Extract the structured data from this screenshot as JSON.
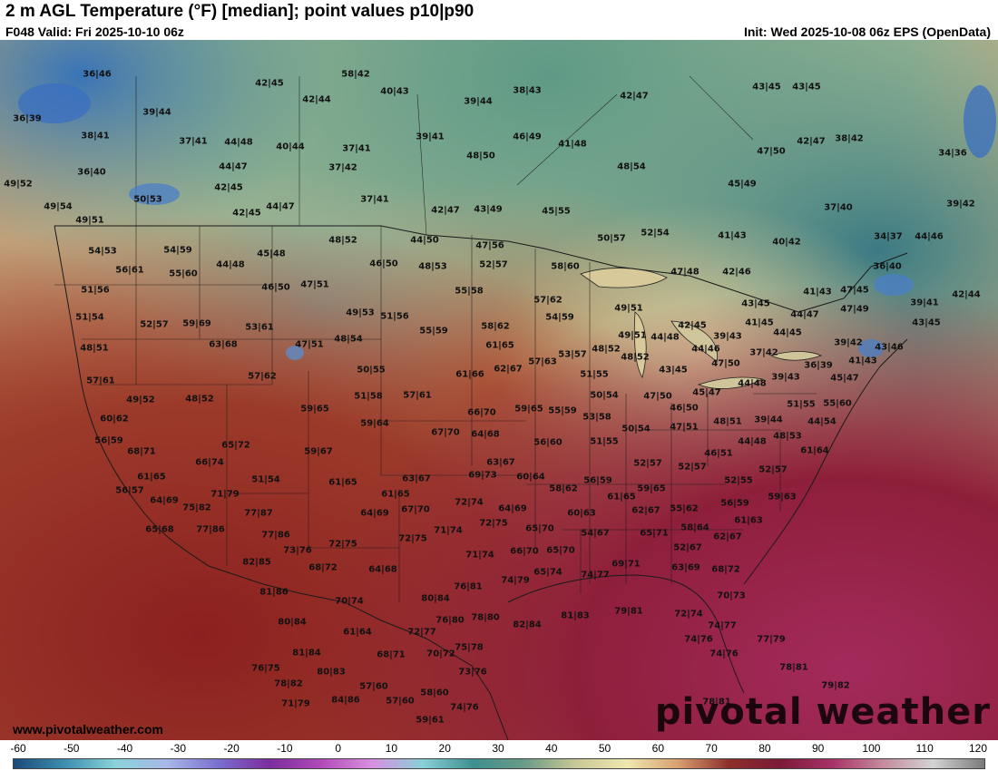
{
  "header": {
    "title": "2 m AGL Temperature (°F) [median]; point values p10|p90",
    "valid": "F048 Valid: Fri 2025-10-10 06z",
    "init": "Init: Wed 2025-10-08 06z EPS (OpenData)"
  },
  "footer": {
    "site": "www.pivotalweather.com",
    "logo": "pivotal weather"
  },
  "colorbar": {
    "labels": [
      "-60",
      "-50",
      "-40",
      "-30",
      "-20",
      "-10",
      "0",
      "10",
      "20",
      "30",
      "40",
      "50",
      "60",
      "70",
      "80",
      "90",
      "100",
      "110",
      "120"
    ],
    "stops": [
      "#1a4a7a",
      "#3d8fb0",
      "#8ad3d9",
      "#a9b7e8",
      "#7a6fcf",
      "#7b2d9e",
      "#b04ab8",
      "#d98ee0",
      "#8ad0d8",
      "#3d8f8f",
      "#6a9b87",
      "#c9c896",
      "#efe7b0",
      "#d9a070",
      "#8c2f2a",
      "#7a1a38",
      "#a73067",
      "#c58a9c",
      "#d4d4d4",
      "#7a7a7a"
    ]
  },
  "points": [
    [
      "36|46",
      107,
      82
    ],
    [
      "58|42",
      392,
      82
    ],
    [
      "42|45",
      297,
      92
    ],
    [
      "40|43",
      435,
      101
    ],
    [
      "42|44",
      349,
      110
    ],
    [
      "39|44",
      527,
      112
    ],
    [
      "38|43",
      581,
      100
    ],
    [
      "42|47",
      699,
      106
    ],
    [
      "43|45",
      845,
      96
    ],
    [
      "43|45",
      889,
      96
    ],
    [
      "36|39",
      30,
      131
    ],
    [
      "39|44",
      173,
      124
    ],
    [
      "38|41",
      105,
      150
    ],
    [
      "37|41",
      213,
      156
    ],
    [
      "44|48",
      263,
      157
    ],
    [
      "40|44",
      320,
      162
    ],
    [
      "37|41",
      393,
      164
    ],
    [
      "39|41",
      474,
      151
    ],
    [
      "46|49",
      581,
      151
    ],
    [
      "41|48",
      631,
      159
    ],
    [
      "47|50",
      850,
      167
    ],
    [
      "42|47",
      894,
      156
    ],
    [
      "38|42",
      936,
      153
    ],
    [
      "34|36",
      1050,
      169
    ],
    [
      "48|50",
      530,
      172
    ],
    [
      "44|47",
      257,
      184
    ],
    [
      "37|42",
      378,
      185
    ],
    [
      "48|54",
      696,
      184
    ],
    [
      "36|40",
      101,
      190
    ],
    [
      "49|52",
      20,
      203
    ],
    [
      "42|45",
      252,
      207
    ],
    [
      "45|49",
      818,
      203
    ],
    [
      "50|53",
      163,
      220
    ],
    [
      "37|41",
      413,
      220
    ],
    [
      "49|54",
      64,
      228
    ],
    [
      "44|47",
      309,
      228
    ],
    [
      "42|45",
      272,
      235
    ],
    [
      "42|47",
      491,
      232
    ],
    [
      "43|49",
      538,
      231
    ],
    [
      "45|55",
      613,
      233
    ],
    [
      "37|40",
      924,
      229
    ],
    [
      "39|42",
      1059,
      225
    ],
    [
      "49|51",
      99,
      243
    ],
    [
      "50|57",
      674,
      263
    ],
    [
      "52|54",
      722,
      257
    ],
    [
      "41|43",
      807,
      260
    ],
    [
      "40|42",
      867,
      267
    ],
    [
      "34|37",
      979,
      261
    ],
    [
      "44|46",
      1024,
      261
    ],
    [
      "48|52",
      378,
      265
    ],
    [
      "44|50",
      468,
      265
    ],
    [
      "47|56",
      540,
      271
    ],
    [
      "54|53",
      113,
      277
    ],
    [
      "54|59",
      196,
      276
    ],
    [
      "45|48",
      299,
      280
    ],
    [
      "46|50",
      423,
      291
    ],
    [
      "48|53",
      477,
      294
    ],
    [
      "52|57",
      544,
      292
    ],
    [
      "58|60",
      623,
      294
    ],
    [
      "36|40",
      978,
      294
    ],
    [
      "44|48",
      254,
      292
    ],
    [
      "56|61",
      143,
      298
    ],
    [
      "55|60",
      202,
      302
    ],
    [
      "47|48",
      755,
      300
    ],
    [
      "42|46",
      812,
      300
    ],
    [
      "46|50",
      304,
      317
    ],
    [
      "47|51",
      347,
      314
    ],
    [
      "55|58",
      517,
      321
    ],
    [
      "41|43",
      901,
      322
    ],
    [
      "47|45",
      942,
      320
    ],
    [
      "42|44",
      1065,
      325
    ],
    [
      "51|56",
      105,
      320
    ],
    [
      "57|62",
      604,
      331
    ],
    [
      "49|51",
      693,
      340
    ],
    [
      "43|45",
      833,
      335
    ],
    [
      "47|49",
      942,
      341
    ],
    [
      "39|41",
      1019,
      334
    ],
    [
      "51|54",
      99,
      350
    ],
    [
      "52|57",
      170,
      358
    ],
    [
      "59|69",
      217,
      357
    ],
    [
      "53|61",
      286,
      361
    ],
    [
      "49|53",
      397,
      345
    ],
    [
      "51|56",
      435,
      349
    ],
    [
      "54|59",
      617,
      350
    ],
    [
      "58|62",
      546,
      360
    ],
    [
      "42|45",
      763,
      359
    ],
    [
      "41|45",
      837,
      356
    ],
    [
      "44|47",
      887,
      347
    ],
    [
      "43|45",
      1021,
      356
    ],
    [
      "55|59",
      478,
      365
    ],
    [
      "49|51",
      697,
      370
    ],
    [
      "44|48",
      733,
      372
    ],
    [
      "39|43",
      802,
      371
    ],
    [
      "44|45",
      868,
      367
    ],
    [
      "39|42",
      935,
      378
    ],
    [
      "43|46",
      980,
      383
    ],
    [
      "48|51",
      104,
      384
    ],
    [
      "63|68",
      246,
      380
    ],
    [
      "47|51",
      341,
      380
    ],
    [
      "48|54",
      384,
      374
    ],
    [
      "61|65",
      551,
      381
    ],
    [
      "53|57",
      631,
      391
    ],
    [
      "48|52",
      668,
      385
    ],
    [
      "44|46",
      778,
      385
    ],
    [
      "37|42",
      842,
      389
    ],
    [
      "57|63",
      598,
      399
    ],
    [
      "48|52",
      700,
      394
    ],
    [
      "47|50",
      800,
      401
    ],
    [
      "36|39",
      902,
      403
    ],
    [
      "41|43",
      951,
      398
    ],
    [
      "57|62",
      289,
      415
    ],
    [
      "50|55",
      409,
      408
    ],
    [
      "61|66",
      518,
      413
    ],
    [
      "62|67",
      560,
      407
    ],
    [
      "51|55",
      655,
      413
    ],
    [
      "43|45",
      742,
      408
    ],
    [
      "39|43",
      866,
      416
    ],
    [
      "45|47",
      931,
      417
    ],
    [
      "57|61",
      111,
      420
    ],
    [
      "44|48",
      829,
      423
    ],
    [
      "49|52",
      155,
      441
    ],
    [
      "48|52",
      220,
      440
    ],
    [
      "51|58",
      406,
      437
    ],
    [
      "57|61",
      460,
      436
    ],
    [
      "50|54",
      666,
      436
    ],
    [
      "47|50",
      725,
      437
    ],
    [
      "45|47",
      779,
      433
    ],
    [
      "51|55",
      883,
      446
    ],
    [
      "55|60",
      923,
      445
    ],
    [
      "59|65",
      347,
      451
    ],
    [
      "66|70",
      531,
      455
    ],
    [
      "59|65",
      583,
      451
    ],
    [
      "55|59",
      620,
      453
    ],
    [
      "53|58",
      658,
      460
    ],
    [
      "46|50",
      754,
      450
    ],
    [
      "60|62",
      126,
      462
    ],
    [
      "59|64",
      413,
      467
    ],
    [
      "39|44",
      847,
      463
    ],
    [
      "48|51",
      802,
      465
    ],
    [
      "47|51",
      754,
      471
    ],
    [
      "50|54",
      701,
      473
    ],
    [
      "44|54",
      906,
      465
    ],
    [
      "56|59",
      120,
      486
    ],
    [
      "67|70",
      491,
      477
    ],
    [
      "64|68",
      535,
      479
    ],
    [
      "56|60",
      604,
      488
    ],
    [
      "51|55",
      666,
      487
    ],
    [
      "44|48",
      829,
      487
    ],
    [
      "48|53",
      868,
      481
    ],
    [
      "68|71",
      156,
      498
    ],
    [
      "65|72",
      260,
      491
    ],
    [
      "59|67",
      351,
      498
    ],
    [
      "46|51",
      792,
      500
    ],
    [
      "61|64",
      898,
      497
    ],
    [
      "66|74",
      231,
      510
    ],
    [
      "63|67",
      552,
      510
    ],
    [
      "52|57",
      714,
      511
    ],
    [
      "52|57",
      763,
      515
    ],
    [
      "52|57",
      852,
      518
    ],
    [
      "61|65",
      167,
      526
    ],
    [
      "51|54",
      293,
      529
    ],
    [
      "61|65",
      378,
      532
    ],
    [
      "63|67",
      459,
      528
    ],
    [
      "69|73",
      532,
      524
    ],
    [
      "60|64",
      585,
      526
    ],
    [
      "56|59",
      659,
      530
    ],
    [
      "52|55",
      814,
      530
    ],
    [
      "56|57",
      143,
      541
    ],
    [
      "71|79",
      248,
      545
    ],
    [
      "61|65",
      436,
      545
    ],
    [
      "58|62",
      621,
      539
    ],
    [
      "59|65",
      718,
      539
    ],
    [
      "61|65",
      685,
      548
    ],
    [
      "59|63",
      862,
      548
    ],
    [
      "64|69",
      181,
      552
    ],
    [
      "75|82",
      217,
      560
    ],
    [
      "72|74",
      517,
      554
    ],
    [
      "64|69",
      565,
      561
    ],
    [
      "55|62",
      754,
      561
    ],
    [
      "56|59",
      810,
      555
    ],
    [
      "77|87",
      285,
      566
    ],
    [
      "67|70",
      458,
      562
    ],
    [
      "64|69",
      413,
      566
    ],
    [
      "60|63",
      641,
      566
    ],
    [
      "62|67",
      712,
      563
    ],
    [
      "61|63",
      825,
      574
    ],
    [
      "65|68",
      176,
      584
    ],
    [
      "77|86",
      232,
      584
    ],
    [
      "71|74",
      494,
      585
    ],
    [
      "72|75",
      544,
      577
    ],
    [
      "65|70",
      595,
      583
    ],
    [
      "54|67",
      656,
      588
    ],
    [
      "65|71",
      721,
      588
    ],
    [
      "58|64",
      766,
      582
    ],
    [
      "62|67",
      802,
      592
    ],
    [
      "77|86",
      304,
      590
    ],
    [
      "72|75",
      378,
      600
    ],
    [
      "72|75",
      455,
      594
    ],
    [
      "73|76",
      328,
      607
    ],
    [
      "71|74",
      529,
      612
    ],
    [
      "66|70",
      578,
      608
    ],
    [
      "65|70",
      618,
      607
    ],
    [
      "52|67",
      758,
      604
    ],
    [
      "82|85",
      283,
      620
    ],
    [
      "68|72",
      356,
      626
    ],
    [
      "64|68",
      422,
      628
    ],
    [
      "65|74",
      604,
      631
    ],
    [
      "74|79",
      568,
      640
    ],
    [
      "74|77",
      656,
      634
    ],
    [
      "69|71",
      690,
      622
    ],
    [
      "63|69",
      756,
      626
    ],
    [
      "68|72",
      800,
      628
    ],
    [
      "81|86",
      302,
      653
    ],
    [
      "76|81",
      516,
      647
    ],
    [
      "80|84",
      480,
      660
    ],
    [
      "70|74",
      385,
      663
    ],
    [
      "70|73",
      806,
      657
    ],
    [
      "80|84",
      322,
      686
    ],
    [
      "76|80",
      496,
      684
    ],
    [
      "78|80",
      535,
      681
    ],
    [
      "82|84",
      581,
      689
    ],
    [
      "81|83",
      634,
      679
    ],
    [
      "79|81",
      693,
      674
    ],
    [
      "72|74",
      759,
      677
    ],
    [
      "74|77",
      796,
      690
    ],
    [
      "61|64",
      394,
      697
    ],
    [
      "72|77",
      465,
      697
    ],
    [
      "74|76",
      770,
      705
    ],
    [
      "77|79",
      850,
      705
    ],
    [
      "81|84",
      338,
      720
    ],
    [
      "68|71",
      431,
      722
    ],
    [
      "70|72",
      486,
      721
    ],
    [
      "75|78",
      517,
      714
    ],
    [
      "74|76",
      798,
      721
    ],
    [
      "76|75",
      293,
      737
    ],
    [
      "80|83",
      365,
      741
    ],
    [
      "73|76",
      521,
      741
    ],
    [
      "78|81",
      875,
      736
    ],
    [
      "78|82",
      318,
      754
    ],
    [
      "57|60",
      412,
      757
    ],
    [
      "58|60",
      479,
      764
    ],
    [
      "79|82",
      921,
      756
    ],
    [
      "71|79",
      326,
      776
    ],
    [
      "84|86",
      381,
      772
    ],
    [
      "57|60",
      441,
      773
    ],
    [
      "74|76",
      512,
      780
    ],
    [
      "78|81",
      790,
      774
    ],
    [
      "59|61",
      474,
      794
    ]
  ]
}
